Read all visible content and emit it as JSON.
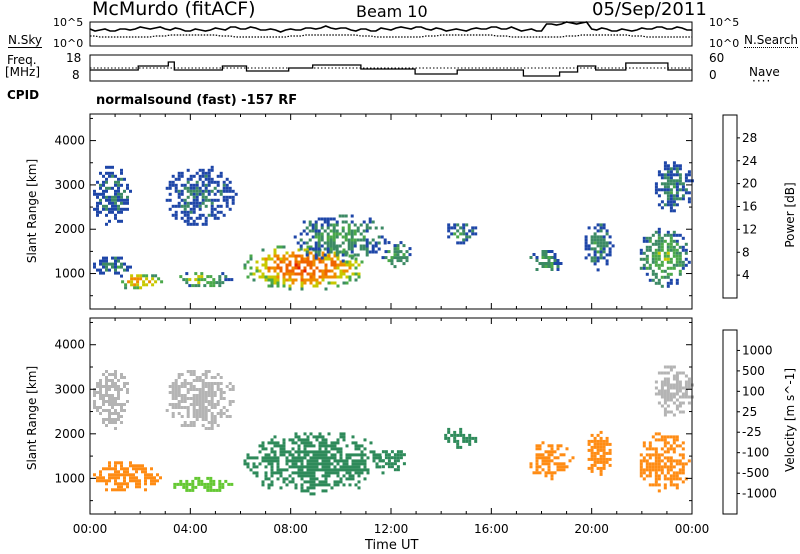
{
  "header": {
    "station": "McMurdo (fitACF)",
    "beam": "Beam 10",
    "date": "05/Sep/2011"
  },
  "left_labels": {
    "nsky": "N.Sky",
    "freq_line1": "Freq.",
    "freq_line2": "[MHz]",
    "cpid": "CPID"
  },
  "right_labels": {
    "nsearch": "N.Search",
    "nave": "Nave"
  },
  "noise_panel": {
    "left_ticks": [
      "10^5",
      "10^0"
    ],
    "right_ticks": [
      "10^5",
      "10^0"
    ]
  },
  "freq_panel": {
    "left_ticks": [
      "18",
      "8"
    ],
    "right_ticks": [
      "60",
      "0"
    ]
  },
  "cpid_text": "normalsound (fast) -157 RF",
  "x_axis": {
    "label": "Time UT",
    "tick_labels": [
      "00:00",
      "04:00",
      "08:00",
      "12:00",
      "16:00",
      "20:00",
      "00:00"
    ]
  },
  "colorbars": {
    "power": {
      "label": "Power [dB]",
      "ticks": [
        "4",
        "8",
        "12",
        "16",
        "20",
        "24",
        "28"
      ],
      "colors": [
        "#0a1ee6",
        "#1e46a8",
        "#3c8a64",
        "#4aa84a",
        "#c8c800",
        "#f08c00",
        "#f06400",
        "#e61e00"
      ]
    },
    "velocity": {
      "label": "Velocity [m s^-1]",
      "ticks": [
        "1000",
        "500",
        "100",
        "25",
        "-25",
        "-100",
        "-500",
        "-1000"
      ],
      "colors": [
        "#1e46b4",
        "#2e6aa0",
        "#2e8a5a",
        "#64c832",
        "#b4b4b4",
        "#ffb428",
        "#ff8c14",
        "#f05014",
        "#e61e00"
      ]
    }
  },
  "chart_data": [
    {
      "type": "heatmap",
      "title": "",
      "xlabel": "Time UT",
      "ylabel": "Slant Range [km]",
      "xlim": [
        0,
        24
      ],
      "ylim": [
        200,
        4600
      ],
      "yticks": [
        1000,
        2000,
        3000,
        4000
      ],
      "colorbar_label": "Power [dB]",
      "echo_regions": [
        {
          "t0": 0.0,
          "t1": 1.7,
          "r0": 950,
          "r1": 1450,
          "value": 10
        },
        {
          "t0": 1.0,
          "t1": 2.8,
          "r0": 650,
          "r1": 1050,
          "value": 22
        },
        {
          "t0": 3.2,
          "t1": 5.6,
          "r0": 700,
          "r1": 1100,
          "value": 16
        },
        {
          "t0": 0.0,
          "t1": 1.6,
          "r0": 2100,
          "r1": 3500,
          "value": 8
        },
        {
          "t0": 2.9,
          "t1": 5.8,
          "r0": 2100,
          "r1": 3500,
          "value": 8
        },
        {
          "t0": 6.0,
          "t1": 11.0,
          "r0": 650,
          "r1": 1700,
          "value": 26
        },
        {
          "t0": 8.0,
          "t1": 11.8,
          "r0": 1300,
          "r1": 2400,
          "value": 12
        },
        {
          "t0": 11.5,
          "t1": 12.8,
          "r0": 1100,
          "r1": 1800,
          "value": 12
        },
        {
          "t0": 14.0,
          "t1": 15.4,
          "r0": 1700,
          "r1": 2200,
          "value": 10
        },
        {
          "t0": 17.4,
          "t1": 18.8,
          "r0": 1000,
          "r1": 1600,
          "value": 12
        },
        {
          "t0": 19.6,
          "t1": 20.8,
          "r0": 1100,
          "r1": 2200,
          "value": 10
        },
        {
          "t0": 21.8,
          "t1": 23.9,
          "r0": 700,
          "r1": 2100,
          "value": 14
        },
        {
          "t0": 22.4,
          "t1": 24.0,
          "r0": 2400,
          "r1": 3600,
          "value": 10
        }
      ]
    },
    {
      "type": "heatmap",
      "title": "",
      "xlabel": "Time UT",
      "ylabel": "Slant Range [km]",
      "xlim": [
        0,
        24
      ],
      "ylim": [
        200,
        4600
      ],
      "yticks": [
        1000,
        2000,
        3000,
        4000
      ],
      "colorbar_label": "Velocity [m s^-1]",
      "echo_regions": [
        {
          "t0": 0.0,
          "t1": 2.8,
          "r0": 700,
          "r1": 1450,
          "value": -150
        },
        {
          "t0": 3.2,
          "t1": 5.6,
          "r0": 700,
          "r1": 1100,
          "value": 60
        },
        {
          "t0": 0.0,
          "t1": 1.6,
          "r0": 2100,
          "r1": 3500,
          "value": 0
        },
        {
          "t0": 2.9,
          "t1": 5.8,
          "r0": 2100,
          "r1": 3500,
          "value": 0
        },
        {
          "t0": 6.0,
          "t1": 11.8,
          "r0": 650,
          "r1": 2100,
          "value": 300
        },
        {
          "t0": 11.4,
          "t1": 12.6,
          "r0": 1200,
          "r1": 1700,
          "value": 300
        },
        {
          "t0": 14.0,
          "t1": 15.4,
          "r0": 1700,
          "r1": 2200,
          "value": 200
        },
        {
          "t0": 17.4,
          "t1": 19.2,
          "r0": 1000,
          "r1": 1900,
          "value": -200
        },
        {
          "t0": 19.6,
          "t1": 20.8,
          "r0": 1100,
          "r1": 2200,
          "value": -150
        },
        {
          "t0": 21.8,
          "t1": 23.9,
          "r0": 700,
          "r1": 2100,
          "value": -200
        },
        {
          "t0": 22.4,
          "t1": 24.0,
          "r0": 2400,
          "r1": 3600,
          "value": 0
        }
      ]
    }
  ]
}
